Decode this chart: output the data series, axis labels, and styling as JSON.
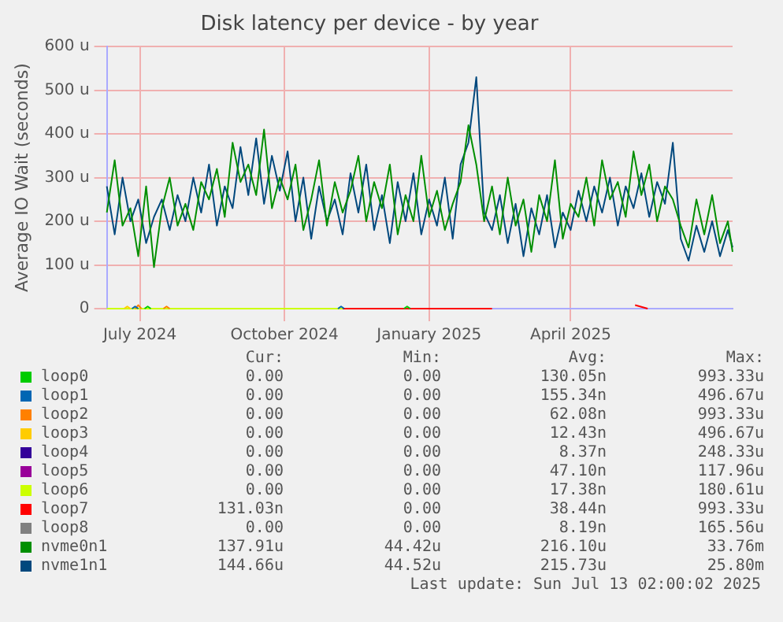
{
  "chart_data": {
    "type": "line",
    "title": "Disk latency per device - by year",
    "ylabel": "Average IO Wait (seconds)",
    "legend": "bottom",
    "grid": true,
    "marker": "none",
    "line_style": "solid",
    "x": [
      "2024-06-10",
      "2024-06-15",
      "2024-06-20",
      "2024-06-25",
      "2024-06-30",
      "2024-07-05",
      "2024-07-10",
      "2024-07-15",
      "2024-07-20",
      "2024-07-25",
      "2024-07-30",
      "2024-08-04",
      "2024-08-09",
      "2024-08-14",
      "2024-08-19",
      "2024-08-24",
      "2024-08-29",
      "2024-09-03",
      "2024-09-08",
      "2024-09-13",
      "2024-09-18",
      "2024-09-23",
      "2024-09-28",
      "2024-10-03",
      "2024-10-08",
      "2024-10-13",
      "2024-10-18",
      "2024-10-23",
      "2024-10-28",
      "2024-11-02",
      "2024-11-07",
      "2024-11-12",
      "2024-11-17",
      "2024-11-22",
      "2024-11-27",
      "2024-12-02",
      "2024-12-07",
      "2024-12-12",
      "2024-12-17",
      "2024-12-22",
      "2024-12-27",
      "2025-01-01",
      "2025-01-06",
      "2025-01-11",
      "2025-01-16",
      "2025-01-21",
      "2025-01-26",
      "2025-01-31",
      "2025-02-05",
      "2025-02-10",
      "2025-02-15",
      "2025-02-20",
      "2025-02-25",
      "2025-03-02",
      "2025-03-07",
      "2025-03-12",
      "2025-03-17",
      "2025-03-22",
      "2025-03-27",
      "2025-04-01",
      "2025-04-06",
      "2025-04-11",
      "2025-04-16",
      "2025-04-21",
      "2025-04-26",
      "2025-05-01",
      "2025-05-06",
      "2025-05-11",
      "2025-05-16",
      "2025-05-21",
      "2025-05-26",
      "2025-05-31",
      "2025-06-05",
      "2025-06-10",
      "2025-06-15",
      "2025-06-20",
      "2025-06-25",
      "2025-06-30",
      "2025-07-05",
      "2025-07-10",
      "2025-07-13"
    ],
    "xlim": [
      "2024-06-10",
      "2025-07-13"
    ],
    "xticks": [
      {
        "value": "2024-07-01",
        "label": "July 2024"
      },
      {
        "value": "2024-10-01",
        "label": "October 2024"
      },
      {
        "value": "2025-01-01",
        "label": "January 2025"
      },
      {
        "value": "2025-04-01",
        "label": "April 2025"
      }
    ],
    "ylim": [
      0,
      600
    ],
    "yticks": [
      0,
      {
        "value": 100,
        "label": "100 u"
      },
      {
        "value": 200,
        "label": "200 u"
      },
      {
        "value": 300,
        "label": "300 u"
      },
      {
        "value": 400,
        "label": "400 u"
      },
      {
        "value": 500,
        "label": "500 u"
      },
      {
        "value": 600,
        "label": "600 u"
      }
    ],
    "series": [
      {
        "name": "loop0",
        "color": "#00cc00",
        "x": [
          "2024-07-04",
          "2024-07-06",
          "2024-07-08",
          "2024-09-01",
          "2024-12-16",
          "2024-12-18",
          "2024-12-20"
        ],
        "values": [
          0,
          5,
          0,
          null,
          0,
          5,
          0
        ]
      },
      {
        "name": "loop1",
        "color": "#0066b3",
        "x": [
          "2024-06-26",
          "2024-06-28",
          "2024-06-30",
          "2024-09-01",
          "2024-11-04",
          "2024-11-06",
          "2024-11-08"
        ],
        "values": [
          0,
          5,
          0,
          null,
          0,
          5,
          0
        ]
      },
      {
        "name": "loop2",
        "color": "#ff8000",
        "x": [
          "2024-06-28",
          "2024-06-30",
          "2024-07-02",
          "2024-07-10",
          "2024-07-16",
          "2024-07-18",
          "2024-07-20"
        ],
        "values": [
          0,
          8,
          0,
          null,
          0,
          5,
          0
        ]
      },
      {
        "name": "loop3",
        "color": "#ffcc00",
        "x": [
          "2024-06-21",
          "2024-06-23",
          "2024-06-25"
        ],
        "values": [
          0,
          5,
          0
        ]
      },
      {
        "name": "loop4",
        "color": "#330099",
        "values": [
          null,
          null,
          null,
          null,
          null,
          null,
          null,
          null,
          null,
          null,
          null,
          null,
          null,
          null,
          null,
          null,
          null,
          null,
          null,
          null,
          null,
          null,
          null,
          null,
          null,
          null,
          null,
          null,
          null,
          null,
          null,
          null,
          null,
          null,
          null,
          null,
          null,
          null,
          null,
          null,
          null,
          null,
          null,
          null,
          null,
          null,
          null,
          null,
          null,
          null,
          null,
          null,
          null,
          null,
          null,
          null,
          null,
          null,
          null,
          null,
          null,
          null,
          null,
          null,
          null,
          null,
          null,
          null,
          null,
          null,
          null,
          null,
          null,
          null,
          null,
          null,
          null,
          null,
          null,
          null,
          null
        ]
      },
      {
        "name": "loop5",
        "color": "#990099",
        "values": [
          null,
          null,
          null,
          null,
          null,
          null,
          null,
          null,
          null,
          null,
          null,
          null,
          null,
          null,
          null,
          null,
          null,
          null,
          null,
          null,
          null,
          null,
          null,
          null,
          null,
          null,
          null,
          null,
          null,
          null,
          null,
          null,
          null,
          null,
          null,
          null,
          null,
          null,
          null,
          null,
          null,
          null,
          null,
          null,
          null,
          null,
          null,
          null,
          null,
          null,
          null,
          null,
          null,
          null,
          null,
          null,
          null,
          null,
          null,
          null,
          null,
          null,
          null,
          null,
          null,
          null,
          null,
          null,
          null,
          null,
          null,
          null,
          null,
          null,
          null,
          null,
          null,
          null,
          null,
          null,
          null
        ]
      },
      {
        "name": "loop6",
        "color": "#ccff00",
        "x": [
          "2024-06-10",
          "2024-11-07"
        ],
        "values": [
          0,
          0
        ]
      },
      {
        "name": "loop7",
        "color": "#ff0000",
        "x": [
          "2024-11-07",
          "2025-02-10",
          "2025-05-04",
          "2025-05-12",
          "2025-05-20"
        ],
        "values": [
          0,
          0,
          null,
          8,
          0
        ]
      },
      {
        "name": "loop8",
        "color": "#808080",
        "values": [
          null,
          null,
          null,
          null,
          null,
          null,
          null,
          null,
          null,
          null,
          null,
          null,
          null,
          null,
          null,
          null,
          null,
          null,
          null,
          null,
          null,
          null,
          null,
          null,
          null,
          null,
          null,
          null,
          null,
          null,
          null,
          null,
          null,
          null,
          null,
          null,
          null,
          null,
          null,
          null,
          null,
          null,
          null,
          null,
          null,
          null,
          null,
          null,
          null,
          null,
          null,
          null,
          null,
          null,
          null,
          null,
          null,
          null,
          null,
          null,
          null,
          null,
          null,
          null,
          null,
          null,
          null,
          null,
          null,
          null,
          null,
          null,
          null,
          null,
          null,
          null,
          null,
          null,
          null,
          null,
          null
        ]
      },
      {
        "name": "nvme0n1",
        "color": "#008f00",
        "values": [
          220,
          340,
          190,
          230,
          120,
          280,
          95,
          230,
          300,
          190,
          240,
          180,
          290,
          250,
          320,
          210,
          380,
          290,
          330,
          260,
          410,
          230,
          300,
          250,
          330,
          180,
          250,
          340,
          190,
          290,
          220,
          270,
          350,
          200,
          290,
          230,
          330,
          170,
          260,
          200,
          350,
          210,
          270,
          180,
          240,
          290,
          420,
          330,
          200,
          280,
          170,
          300,
          190,
          250,
          130,
          260,
          200,
          340,
          160,
          240,
          210,
          300,
          190,
          340,
          250,
          290,
          210,
          360,
          260,
          330,
          200,
          280,
          250,
          190,
          140,
          250,
          170,
          260,
          150,
          200,
          130
        ]
      },
      {
        "name": "nvme1n1",
        "color": "#00487d",
        "values": [
          280,
          170,
          300,
          200,
          250,
          150,
          210,
          250,
          180,
          260,
          200,
          300,
          220,
          330,
          190,
          280,
          230,
          370,
          260,
          390,
          240,
          350,
          270,
          360,
          200,
          300,
          160,
          280,
          200,
          250,
          170,
          310,
          220,
          330,
          180,
          260,
          150,
          290,
          200,
          310,
          170,
          250,
          190,
          300,
          160,
          330,
          380,
          530,
          220,
          180,
          260,
          150,
          240,
          120,
          230,
          170,
          260,
          140,
          220,
          180,
          270,
          200,
          280,
          220,
          300,
          190,
          280,
          230,
          310,
          210,
          290,
          240,
          380,
          160,
          110,
          190,
          130,
          200,
          120,
          180,
          140
        ]
      }
    ],
    "annotations": [
      "Cur:",
      "Min:",
      "Avg:",
      "Max:",
      "0.00",
      "0.00",
      "130.05n",
      "993.33u",
      "0.00",
      "0.00",
      "155.34n",
      "496.67u",
      "0.00",
      "0.00",
      "62.08n",
      "993.33u",
      "0.00",
      "0.00",
      "12.43n",
      "496.67u",
      "0.00",
      "0.00",
      "8.37n",
      "248.33u",
      "0.00",
      "0.00",
      "47.10n",
      "117.96u",
      "0.00",
      "0.00",
      "17.38n",
      "180.61u",
      "131.03n",
      "0.00",
      "38.44n",
      "993.33u",
      "0.00",
      "0.00",
      "8.19n",
      "165.56u",
      "137.91u",
      "44.42u",
      "216.10u",
      "33.76m",
      "144.66u",
      "44.52u",
      "215.73u",
      "25.80m",
      "Last update: Sun Jul 13 02:00:02 2025"
    ]
  }
}
